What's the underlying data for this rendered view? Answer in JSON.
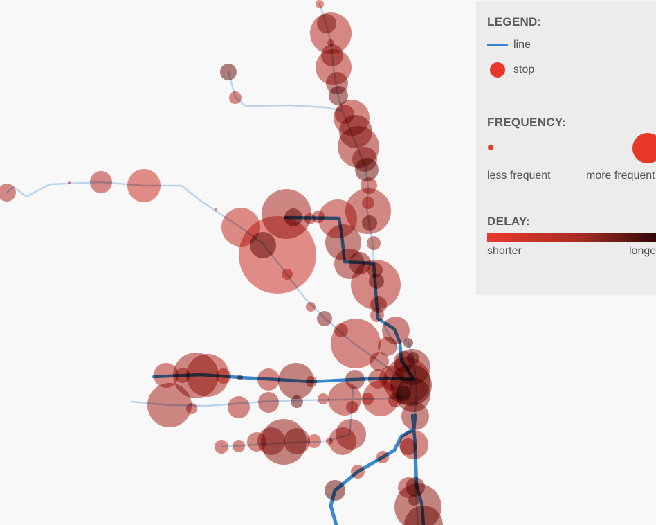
{
  "legend": {
    "title": "LEGEND:",
    "line_label": "line",
    "stop_label": "stop"
  },
  "frequency": {
    "title": "FREQUENCY:",
    "less_label": "less frequent",
    "more_label": "more frequent"
  },
  "delay": {
    "title": "DELAY:",
    "shorter_label": "shorter",
    "longer_label": "longer"
  },
  "colors": {
    "line": "#3a86cf",
    "line_faint": "#b9d4ec",
    "stop": "#e8382a",
    "delay_short": "#e8392b",
    "delay_long": "#2a0606",
    "background": "#f8f8f9"
  }
}
